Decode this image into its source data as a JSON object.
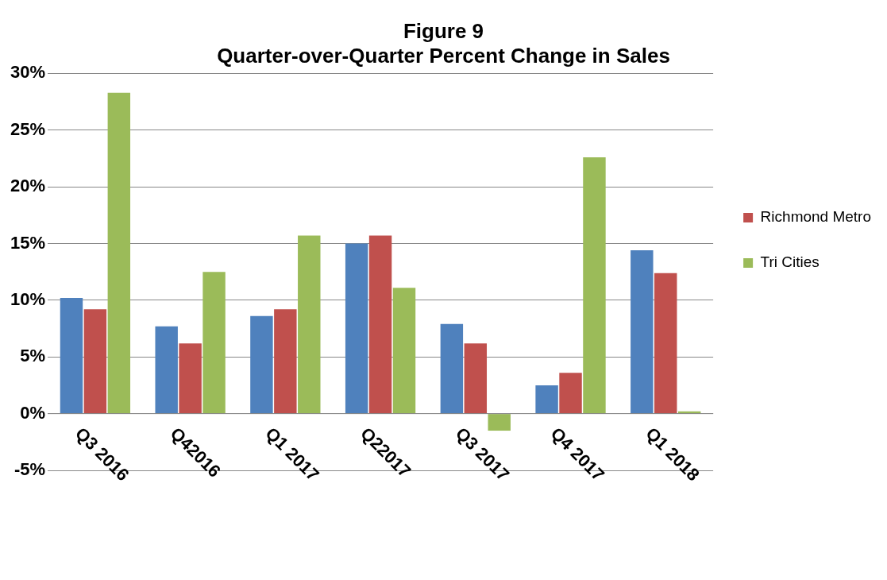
{
  "chart_data": {
    "type": "bar",
    "title": [
      "Figure 9",
      "Quarter-over-Quarter Percent Change in Sales"
    ],
    "categories": [
      "Q3 2016",
      "Q42016",
      "Q1 2017",
      "Q22017",
      "Q3 2017",
      "Q4 2017",
      "Q1 2018"
    ],
    "series": [
      {
        "color": "#4f81bd",
        "values": [
          10.2,
          7.7,
          8.6,
          15.0,
          7.9,
          2.5,
          14.4
        ]
      },
      {
        "name": "Richmond Metro",
        "color": "#c0504d",
        "values": [
          9.2,
          6.2,
          9.2,
          15.7,
          6.2,
          3.6,
          12.4
        ]
      },
      {
        "name": "Tri Cities",
        "color": "#9bbb59",
        "values": [
          28.3,
          12.5,
          15.7,
          11.1,
          -1.5,
          22.6,
          0.2
        ]
      }
    ],
    "ylim": [
      -5,
      30
    ],
    "yticks": [
      {
        "value": -5,
        "label": "-5%"
      },
      {
        "value": 0,
        "label": "0%"
      },
      {
        "value": 5,
        "label": "5%"
      },
      {
        "value": 10,
        "label": "10%"
      },
      {
        "value": 15,
        "label": "15%"
      },
      {
        "value": 20,
        "label": "20%"
      },
      {
        "value": 25,
        "label": "25%"
      },
      {
        "value": 30,
        "label": "30%"
      }
    ],
    "grid": "y",
    "legend": "right"
  }
}
